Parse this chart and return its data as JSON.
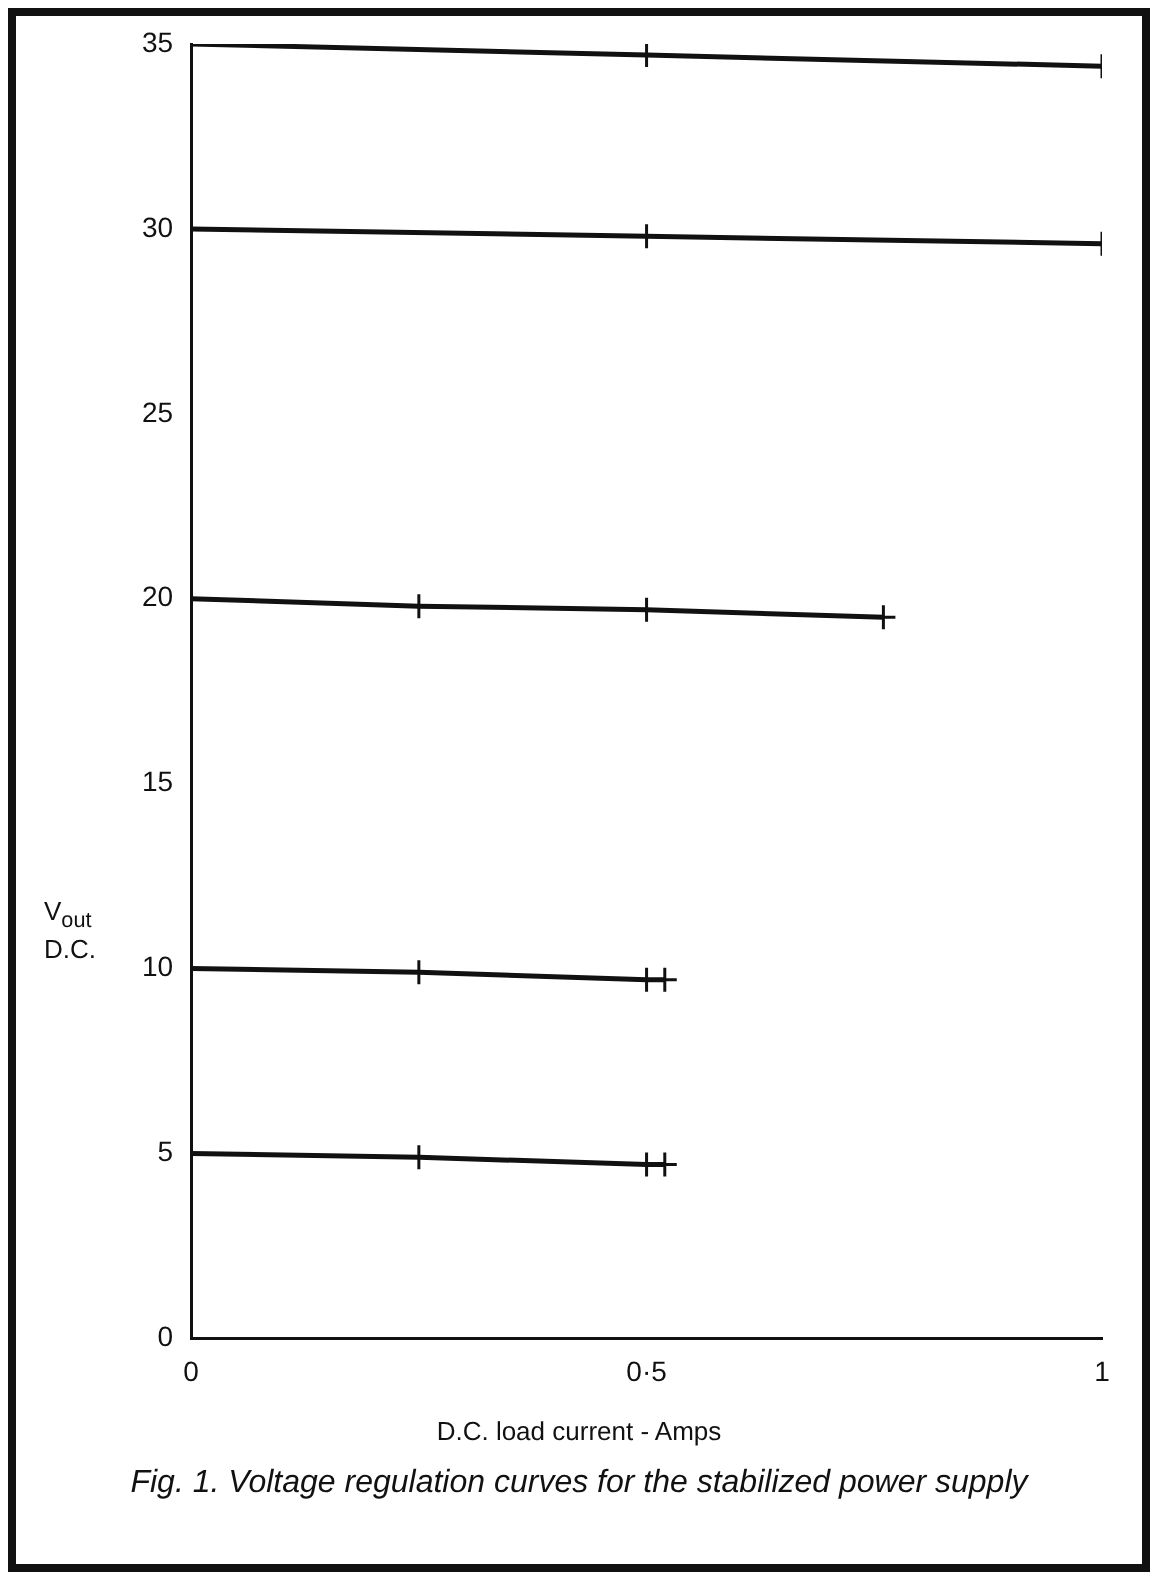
{
  "chart_data": {
    "type": "line",
    "title": "Fig. 1. Voltage regulation curves for the stabilized power supply",
    "xlabel": "D.C. load current - Amps",
    "ylabel": "V$_{out}$ D.C.",
    "xlim": [
      0,
      1
    ],
    "xticks": [
      0,
      {
        "value": 0.5,
        "label": "0·5"
      },
      1
    ],
    "ylim": [
      0,
      35
    ],
    "yticks": [
      0,
      5,
      10,
      15,
      20,
      25,
      30,
      35
    ],
    "grid": false,
    "legend": false,
    "marker": "cross",
    "line_style": "solid",
    "series": [
      {
        "color": "#111111",
        "x": [
          0,
          0.5,
          1
        ],
        "values": [
          35,
          34.7,
          34.4
        ]
      },
      {
        "color": "#111111",
        "x": [
          0,
          0.5,
          1
        ],
        "values": [
          30,
          29.8,
          29.6
        ]
      },
      {
        "color": "#111111",
        "x": [
          0,
          0.25,
          0.5,
          0.76
        ],
        "values": [
          20,
          19.8,
          19.7,
          19.5
        ]
      },
      {
        "color": "#111111",
        "x": [
          0,
          0.25,
          0.5,
          0.52
        ],
        "values": [
          10,
          9.9,
          9.7,
          9.7
        ]
      },
      {
        "color": "#111111",
        "x": [
          0,
          0.25,
          0.5,
          0.52
        ],
        "values": [
          5,
          4.9,
          4.7,
          4.7
        ]
      }
    ]
  }
}
